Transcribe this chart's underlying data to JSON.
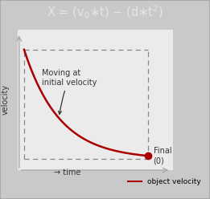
{
  "title_text": "X = (v$_0$$\\ast$t) $-$ (d$\\ast$t$^2$)",
  "title_bg": "#636363",
  "title_color": "#e5e5e5",
  "title_fontsize": 10.5,
  "outer_bg": "#c9c9c9",
  "plot_bg": "#ebebeb",
  "curve_color": "#aa0000",
  "curve_lw": 1.8,
  "dot_color": "#aa0000",
  "dot_size": 6,
  "annotation_text": "Moving at\ninitial velocity",
  "annotation_color": "#333333",
  "final_label": "Final\n(0)",
  "xlabel": "→ time",
  "ylabel": "velocity",
  "legend_label": "object velocity",
  "dashed_color": "#888888",
  "border_color": "#aaaaaa",
  "arrow_color": "#aaaaaa"
}
